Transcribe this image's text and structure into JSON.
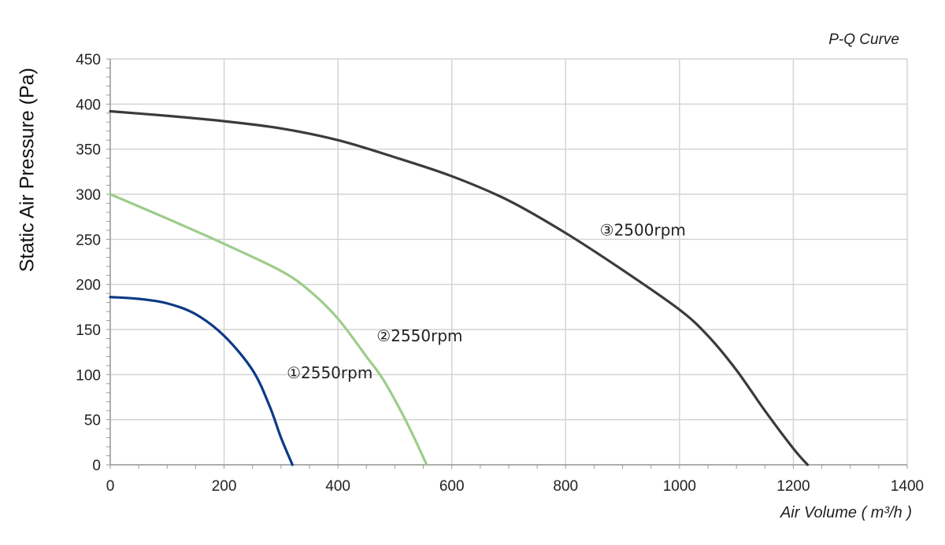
{
  "chart_data": {
    "type": "line",
    "title": "P-Q Curve",
    "xlabel": "Air Volume ( m³/h )",
    "ylabel": "Static Air Pressure  (Pa)",
    "xlim": [
      0,
      1400
    ],
    "ylim": [
      0,
      450
    ],
    "xticks": [
      0,
      200,
      400,
      600,
      800,
      1000,
      1200,
      1400
    ],
    "yticks": [
      0,
      50,
      100,
      150,
      200,
      250,
      300,
      350,
      400,
      450
    ],
    "grid": true,
    "series": [
      {
        "name": "①2550rpm",
        "color": "#0d3a86",
        "x": [
          0,
          50,
          100,
          150,
          200,
          250,
          280,
          300,
          320
        ],
        "y": [
          186,
          184,
          179,
          167,
          143,
          105,
          65,
          30,
          0
        ]
      },
      {
        "name": "②2550rpm",
        "color": "#9dcc8b",
        "x": [
          0,
          100,
          200,
          300,
          350,
          400,
          450,
          480,
          520,
          556
        ],
        "y": [
          300,
          273,
          245,
          215,
          193,
          162,
          120,
          94,
          48,
          0
        ]
      },
      {
        "name": "③2500rpm",
        "color": "#3b3b3b",
        "x": [
          0,
          100,
          200,
          300,
          400,
          500,
          600,
          700,
          800,
          900,
          1000,
          1050,
          1100,
          1150,
          1200,
          1225
        ],
        "y": [
          392,
          387,
          381,
          373,
          360,
          341,
          320,
          293,
          257,
          216,
          172,
          143,
          105,
          60,
          18,
          0
        ]
      }
    ],
    "annotations": [
      {
        "text": "①2550rpm",
        "x": 310,
        "y": 96
      },
      {
        "text": "②2550rpm",
        "x": 468,
        "y": 137
      },
      {
        "text": "③2500rpm",
        "x": 860,
        "y": 254
      }
    ]
  }
}
